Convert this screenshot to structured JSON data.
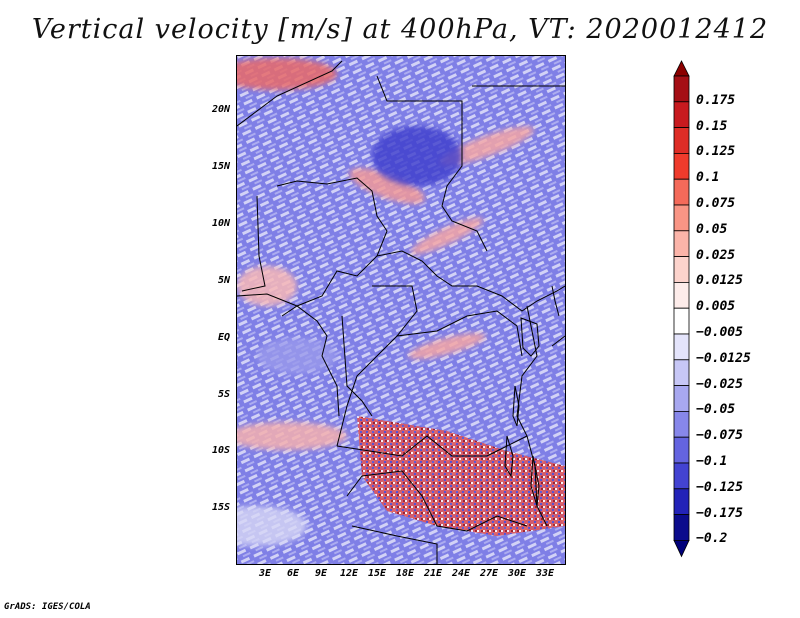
{
  "title": "Vertical velocity [m/s] at 400hPa, VT: 2020012412",
  "footer": "GrADS: IGES/COLA",
  "map": {
    "y_ticks": [
      "20N",
      "15N",
      "10N",
      "5N",
      "EQ",
      "5S",
      "10S",
      "15S"
    ],
    "x_ticks": [
      "3E",
      "6E",
      "9E",
      "12E",
      "15E",
      "18E",
      "21E",
      "24E",
      "27E",
      "30E",
      "33E"
    ]
  },
  "colorbar": {
    "labels": [
      "0.175",
      "0.15",
      "0.125",
      "0.1",
      "0.075",
      "0.05",
      "0.025",
      "0.0125",
      "0.005",
      "−0.005",
      "−0.0125",
      "−0.025",
      "−0.05",
      "−0.075",
      "−0.1",
      "−0.125",
      "−0.175",
      "−0.2"
    ],
    "colors": [
      "#a50f15",
      "#c81a1f",
      "#de2d26",
      "#ef3b2c",
      "#f46a5a",
      "#f99585",
      "#fbb4a9",
      "#fcd3cc",
      "#fdecea",
      "#ffffff",
      "#e4e4fb",
      "#c7c7f6",
      "#a8a8f0",
      "#8787ea",
      "#6464e0",
      "#4343d2",
      "#2323b8",
      "#0c0c8c"
    ],
    "top_arrow_color": "#8b0000",
    "bottom_arrow_color": "#00007a"
  }
}
